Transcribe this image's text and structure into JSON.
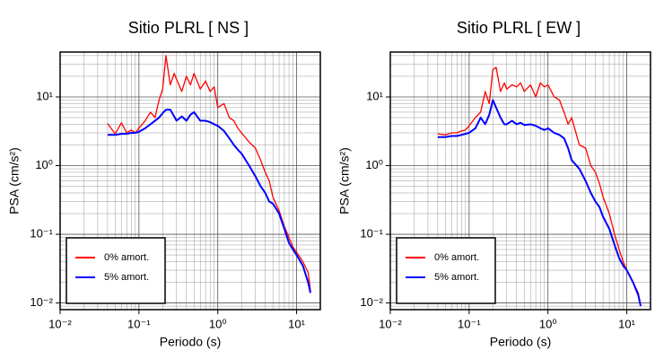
{
  "chart_data": [
    {
      "type": "line",
      "title": "Sitio PLRL [ NS ]",
      "xlabel": "Periodo (s)",
      "ylabel": "PSA (cm/s²)",
      "xscale": "log",
      "yscale": "log",
      "grid": true,
      "legend": "lower left",
      "xlim": [
        0.01,
        20
      ],
      "ylim": [
        0.008,
        45
      ],
      "xticks": [
        {
          "value": 0.01,
          "label": "10⁻²"
        },
        {
          "value": 0.1,
          "label": "10⁻¹"
        },
        {
          "value": 1,
          "label": "10⁰"
        },
        {
          "value": 10,
          "label": "10¹"
        }
      ],
      "yticks": [
        {
          "value": 0.01,
          "label": "10⁻²"
        },
        {
          "value": 0.1,
          "label": "10⁻¹"
        },
        {
          "value": 1,
          "label": "10⁰"
        },
        {
          "value": 10,
          "label": "10¹"
        }
      ],
      "x": [
        0.04,
        0.05,
        0.06,
        0.07,
        0.08,
        0.09,
        0.1,
        0.12,
        0.14,
        0.16,
        0.18,
        0.2,
        0.22,
        0.25,
        0.28,
        0.3,
        0.35,
        0.4,
        0.45,
        0.5,
        0.6,
        0.7,
        0.8,
        0.9,
        1.0,
        1.2,
        1.4,
        1.6,
        1.8,
        2.0,
        2.5,
        3.0,
        3.5,
        4.0,
        4.5,
        5.0,
        6.0,
        7.0,
        8.0,
        9.0,
        10,
        12,
        14,
        15
      ],
      "series": [
        {
          "name": "0% amort.",
          "color": "#ff0000",
          "values": [
            4.1,
            2.9,
            4.2,
            3.0,
            3.3,
            3.0,
            3.5,
            4.5,
            6,
            5,
            9,
            13,
            40,
            15,
            22,
            18,
            12,
            20,
            15,
            22,
            13,
            17,
            12,
            14,
            7,
            8,
            5,
            4.5,
            3.5,
            3,
            2.2,
            1.8,
            1.2,
            0.8,
            0.6,
            0.35,
            0.22,
            0.13,
            0.09,
            0.065,
            0.055,
            0.04,
            0.028,
            0.015
          ]
        },
        {
          "name": "5% amort.",
          "color": "#0000ff",
          "values": [
            2.8,
            2.8,
            2.9,
            2.9,
            3.0,
            3.0,
            3.1,
            3.5,
            4.0,
            4.5,
            5,
            5.8,
            6.5,
            6.5,
            5.2,
            4.5,
            5.2,
            4.5,
            5.5,
            6.0,
            4.5,
            4.5,
            4.3,
            4.0,
            3.8,
            3.2,
            2.5,
            2.0,
            1.7,
            1.5,
            1.0,
            0.7,
            0.5,
            0.4,
            0.3,
            0.28,
            0.2,
            0.12,
            0.075,
            0.06,
            0.05,
            0.035,
            0.02,
            0.014
          ]
        }
      ]
    },
    {
      "type": "line",
      "title": "Sitio PLRL [ EW ]",
      "xlabel": "Periodo (s)",
      "ylabel": "PSA (cm/s²)",
      "xscale": "log",
      "yscale": "log",
      "grid": true,
      "legend": "lower left",
      "xlim": [
        0.01,
        20
      ],
      "ylim": [
        0.008,
        45
      ],
      "xticks": [
        {
          "value": 0.01,
          "label": "10⁻²"
        },
        {
          "value": 0.1,
          "label": "10⁻¹"
        },
        {
          "value": 1,
          "label": "10⁰"
        },
        {
          "value": 10,
          "label": "10¹"
        }
      ],
      "yticks": [
        {
          "value": 0.01,
          "label": "10⁻²"
        },
        {
          "value": 0.1,
          "label": "10⁻¹"
        },
        {
          "value": 1,
          "label": "10⁰"
        },
        {
          "value": 10,
          "label": "10¹"
        }
      ],
      "x": [
        0.04,
        0.05,
        0.06,
        0.07,
        0.08,
        0.09,
        0.1,
        0.12,
        0.14,
        0.16,
        0.18,
        0.2,
        0.22,
        0.25,
        0.28,
        0.3,
        0.35,
        0.4,
        0.45,
        0.5,
        0.6,
        0.7,
        0.8,
        0.9,
        1.0,
        1.2,
        1.4,
        1.6,
        1.8,
        2.0,
        2.5,
        3.0,
        3.5,
        4.0,
        4.5,
        5.0,
        6.0,
        7.0,
        8.0,
        9.0,
        10,
        12,
        14,
        15
      ],
      "series": [
        {
          "name": "0% amort.",
          "color": "#ff0000",
          "values": [
            2.9,
            2.8,
            3.0,
            3.0,
            3.2,
            3.3,
            3.8,
            5,
            6,
            12,
            8,
            25,
            27,
            12,
            16,
            13,
            15,
            14,
            16,
            12,
            15,
            10,
            16,
            14,
            15,
            10,
            9,
            6,
            4,
            5,
            2,
            1.8,
            1.0,
            0.8,
            0.55,
            0.35,
            0.2,
            0.1,
            0.06,
            0.04,
            0.03,
            0.02,
            0.014,
            0.009
          ]
        },
        {
          "name": "5% amort.",
          "color": "#0000ff",
          "values": [
            2.6,
            2.6,
            2.7,
            2.7,
            2.8,
            2.9,
            3.0,
            3.5,
            5,
            4,
            5.5,
            9,
            7,
            5,
            4,
            4,
            4.5,
            4.0,
            4.2,
            3.9,
            4.0,
            3.8,
            3.5,
            3.3,
            3.5,
            3.0,
            2.8,
            2.5,
            1.8,
            1.2,
            0.9,
            0.6,
            0.4,
            0.3,
            0.25,
            0.18,
            0.12,
            0.07,
            0.045,
            0.035,
            0.03,
            0.02,
            0.013,
            0.009
          ]
        }
      ]
    }
  ]
}
